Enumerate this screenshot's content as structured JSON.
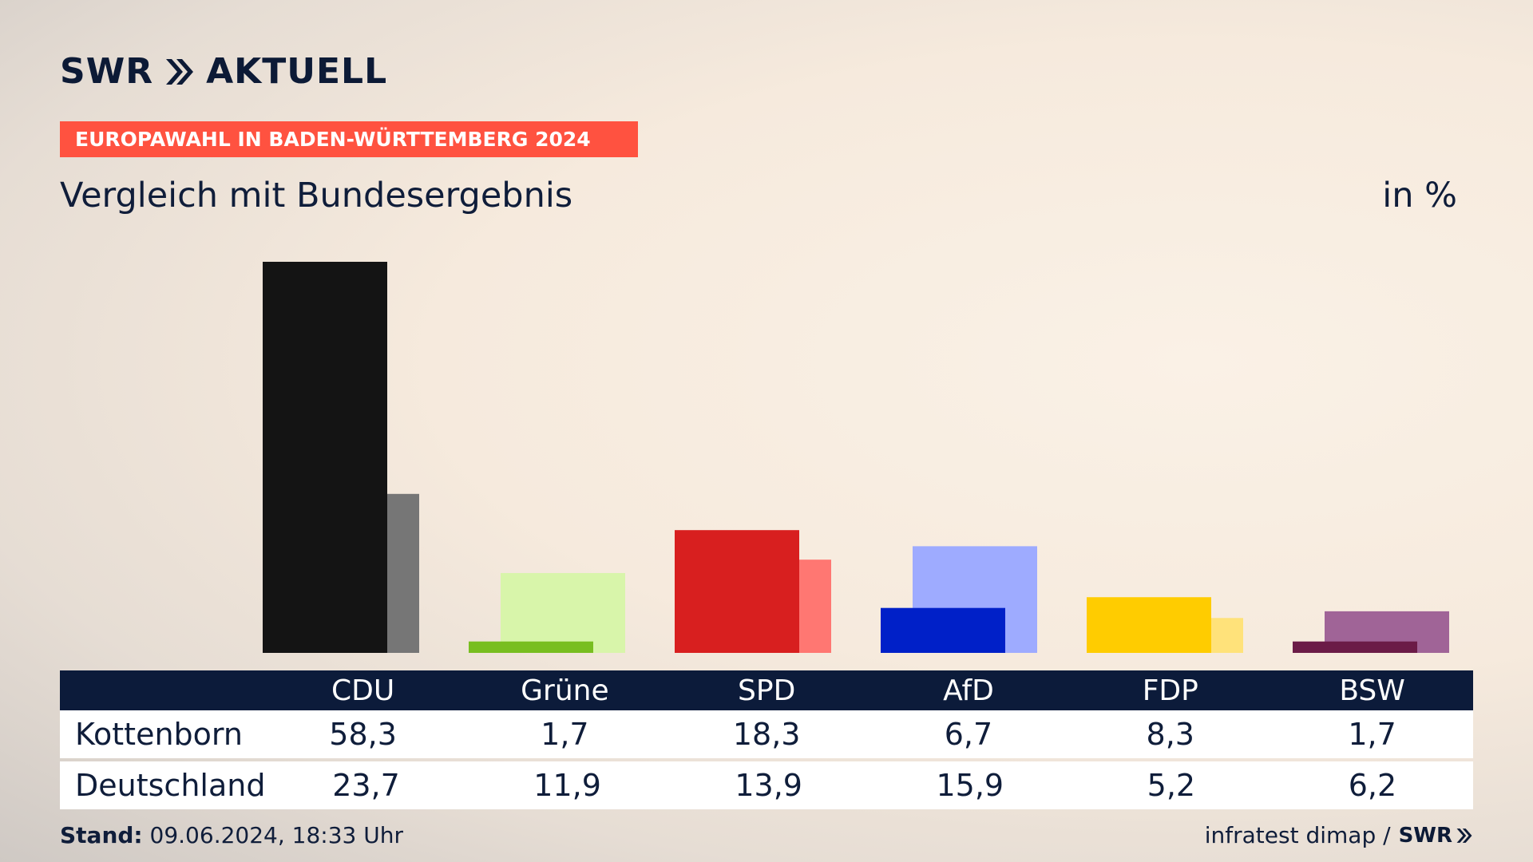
{
  "brand": {
    "name": "SWR",
    "product": "AKTUELL"
  },
  "banner": "EUROPAWAHL IN BADEN-WÜRTTEMBERG 2024",
  "subtitle": "Vergleich mit Bundesergebnis",
  "unit": "in %",
  "footer": {
    "stand_label": "Stand:",
    "stand_value": "09.06.2024, 18:33 Uhr",
    "source": "infratest dimap /",
    "source_brand": "SWR"
  },
  "table": {
    "rows": [
      {
        "label": "Kottenborn",
        "values": [
          "58,3",
          "1,7",
          "18,3",
          "6,7",
          "8,3",
          "1,7"
        ]
      },
      {
        "label": "Deutschland",
        "values": [
          "23,7",
          "11,9",
          "13,9",
          "15,9",
          "5,2",
          "6,2"
        ]
      }
    ]
  },
  "chart_data": {
    "type": "bar",
    "categories": [
      "CDU",
      "Grüne",
      "SPD",
      "AfD",
      "FDP",
      "BSW"
    ],
    "series": [
      {
        "name": "Kottenborn",
        "values": [
          58.3,
          1.7,
          18.3,
          6.7,
          8.3,
          1.7
        ]
      },
      {
        "name": "Deutschland",
        "values": [
          23.7,
          11.9,
          13.9,
          15.9,
          5.2,
          6.2
        ]
      }
    ],
    "colors": {
      "Kottenborn": [
        "#141414",
        "#78be20",
        "#d81f1f",
        "#0020c8",
        "#ffcc00",
        "#6b1b47"
      ],
      "Deutschland": [
        "#767676",
        "#d8f5aa",
        "#ff7772",
        "#9eabff",
        "#ffe27a",
        "#a06497"
      ]
    },
    "ylim": [
      0,
      58.3
    ]
  }
}
